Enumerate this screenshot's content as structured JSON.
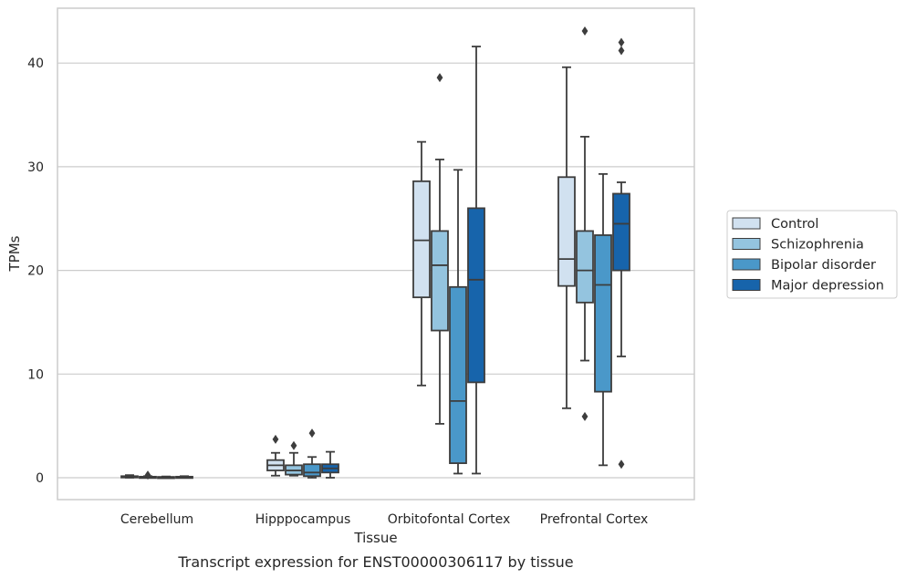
{
  "chart_data": {
    "type": "boxplot",
    "title": "",
    "caption": "Transcript expression for ENST00000306117 by tissue",
    "xlabel": "Tissue",
    "ylabel": "TPMs",
    "categories": [
      "Cerebellum",
      "Hipppocampus",
      "Orbitofontal Cortex",
      "Prefrontal Cortex"
    ],
    "y_ticks": [
      0,
      10,
      20,
      30,
      40
    ],
    "ylim": [
      -2,
      45.5
    ],
    "grid": "horizontal",
    "legend_position": "right",
    "series": [
      {
        "name": "Control",
        "color": "#d1e1f0",
        "boxes": [
          {
            "whislo": 0.0,
            "q1": 0.05,
            "med": 0.1,
            "q3": 0.15,
            "whishi": 0.25,
            "fliers": []
          },
          {
            "whislo": 0.2,
            "q1": 0.7,
            "med": 1.2,
            "q3": 1.7,
            "whishi": 2.4,
            "fliers": [
              3.7
            ]
          },
          {
            "whislo": 8.9,
            "q1": 17.4,
            "med": 22.9,
            "q3": 28.6,
            "whishi": 32.4,
            "fliers": []
          },
          {
            "whislo": 6.7,
            "q1": 18.5,
            "med": 21.1,
            "q3": 29.0,
            "whishi": 39.6,
            "fliers": []
          }
        ]
      },
      {
        "name": "Schizophrenia",
        "color": "#94c4df",
        "boxes": [
          {
            "whislo": 0.0,
            "q1": 0.02,
            "med": 0.05,
            "q3": 0.1,
            "whishi": 0.15,
            "fliers": [
              0.25
            ]
          },
          {
            "whislo": 0.2,
            "q1": 0.3,
            "med": 0.7,
            "q3": 1.2,
            "whishi": 2.4,
            "fliers": [
              3.1
            ]
          },
          {
            "whislo": 5.2,
            "q1": 14.2,
            "med": 20.5,
            "q3": 23.8,
            "whishi": 30.7,
            "fliers": [
              38.6
            ]
          },
          {
            "whislo": 11.3,
            "q1": 16.9,
            "med": 20.0,
            "q3": 23.8,
            "whishi": 32.9,
            "fliers": [
              5.9,
              43.1
            ]
          }
        ]
      },
      {
        "name": "Bipolar disorder",
        "color": "#4a98c9",
        "boxes": [
          {
            "whislo": 0.0,
            "q1": 0.02,
            "med": 0.04,
            "q3": 0.08,
            "whishi": 0.12,
            "fliers": []
          },
          {
            "whislo": 0.0,
            "q1": 0.15,
            "med": 0.5,
            "q3": 1.3,
            "whishi": 2.0,
            "fliers": [
              4.3
            ]
          },
          {
            "whislo": 0.4,
            "q1": 1.4,
            "med": 7.4,
            "q3": 18.4,
            "whishi": 29.7,
            "fliers": []
          },
          {
            "whislo": 1.2,
            "q1": 8.3,
            "med": 18.6,
            "q3": 23.4,
            "whishi": 29.3,
            "fliers": []
          }
        ]
      },
      {
        "name": "Major depression",
        "color": "#1764ab",
        "boxes": [
          {
            "whislo": 0.0,
            "q1": 0.02,
            "med": 0.05,
            "q3": 0.1,
            "whishi": 0.15,
            "fliers": []
          },
          {
            "whislo": 0.0,
            "q1": 0.5,
            "med": 0.9,
            "q3": 1.3,
            "whishi": 2.5,
            "fliers": []
          },
          {
            "whislo": 0.4,
            "q1": 9.2,
            "med": 19.1,
            "q3": 26.0,
            "whishi": 41.6,
            "fliers": []
          },
          {
            "whislo": 11.7,
            "q1": 20.0,
            "med": 24.5,
            "q3": 27.4,
            "whishi": 28.5,
            "fliers": [
              1.3,
              41.2,
              42.0
            ]
          }
        ]
      }
    ]
  }
}
